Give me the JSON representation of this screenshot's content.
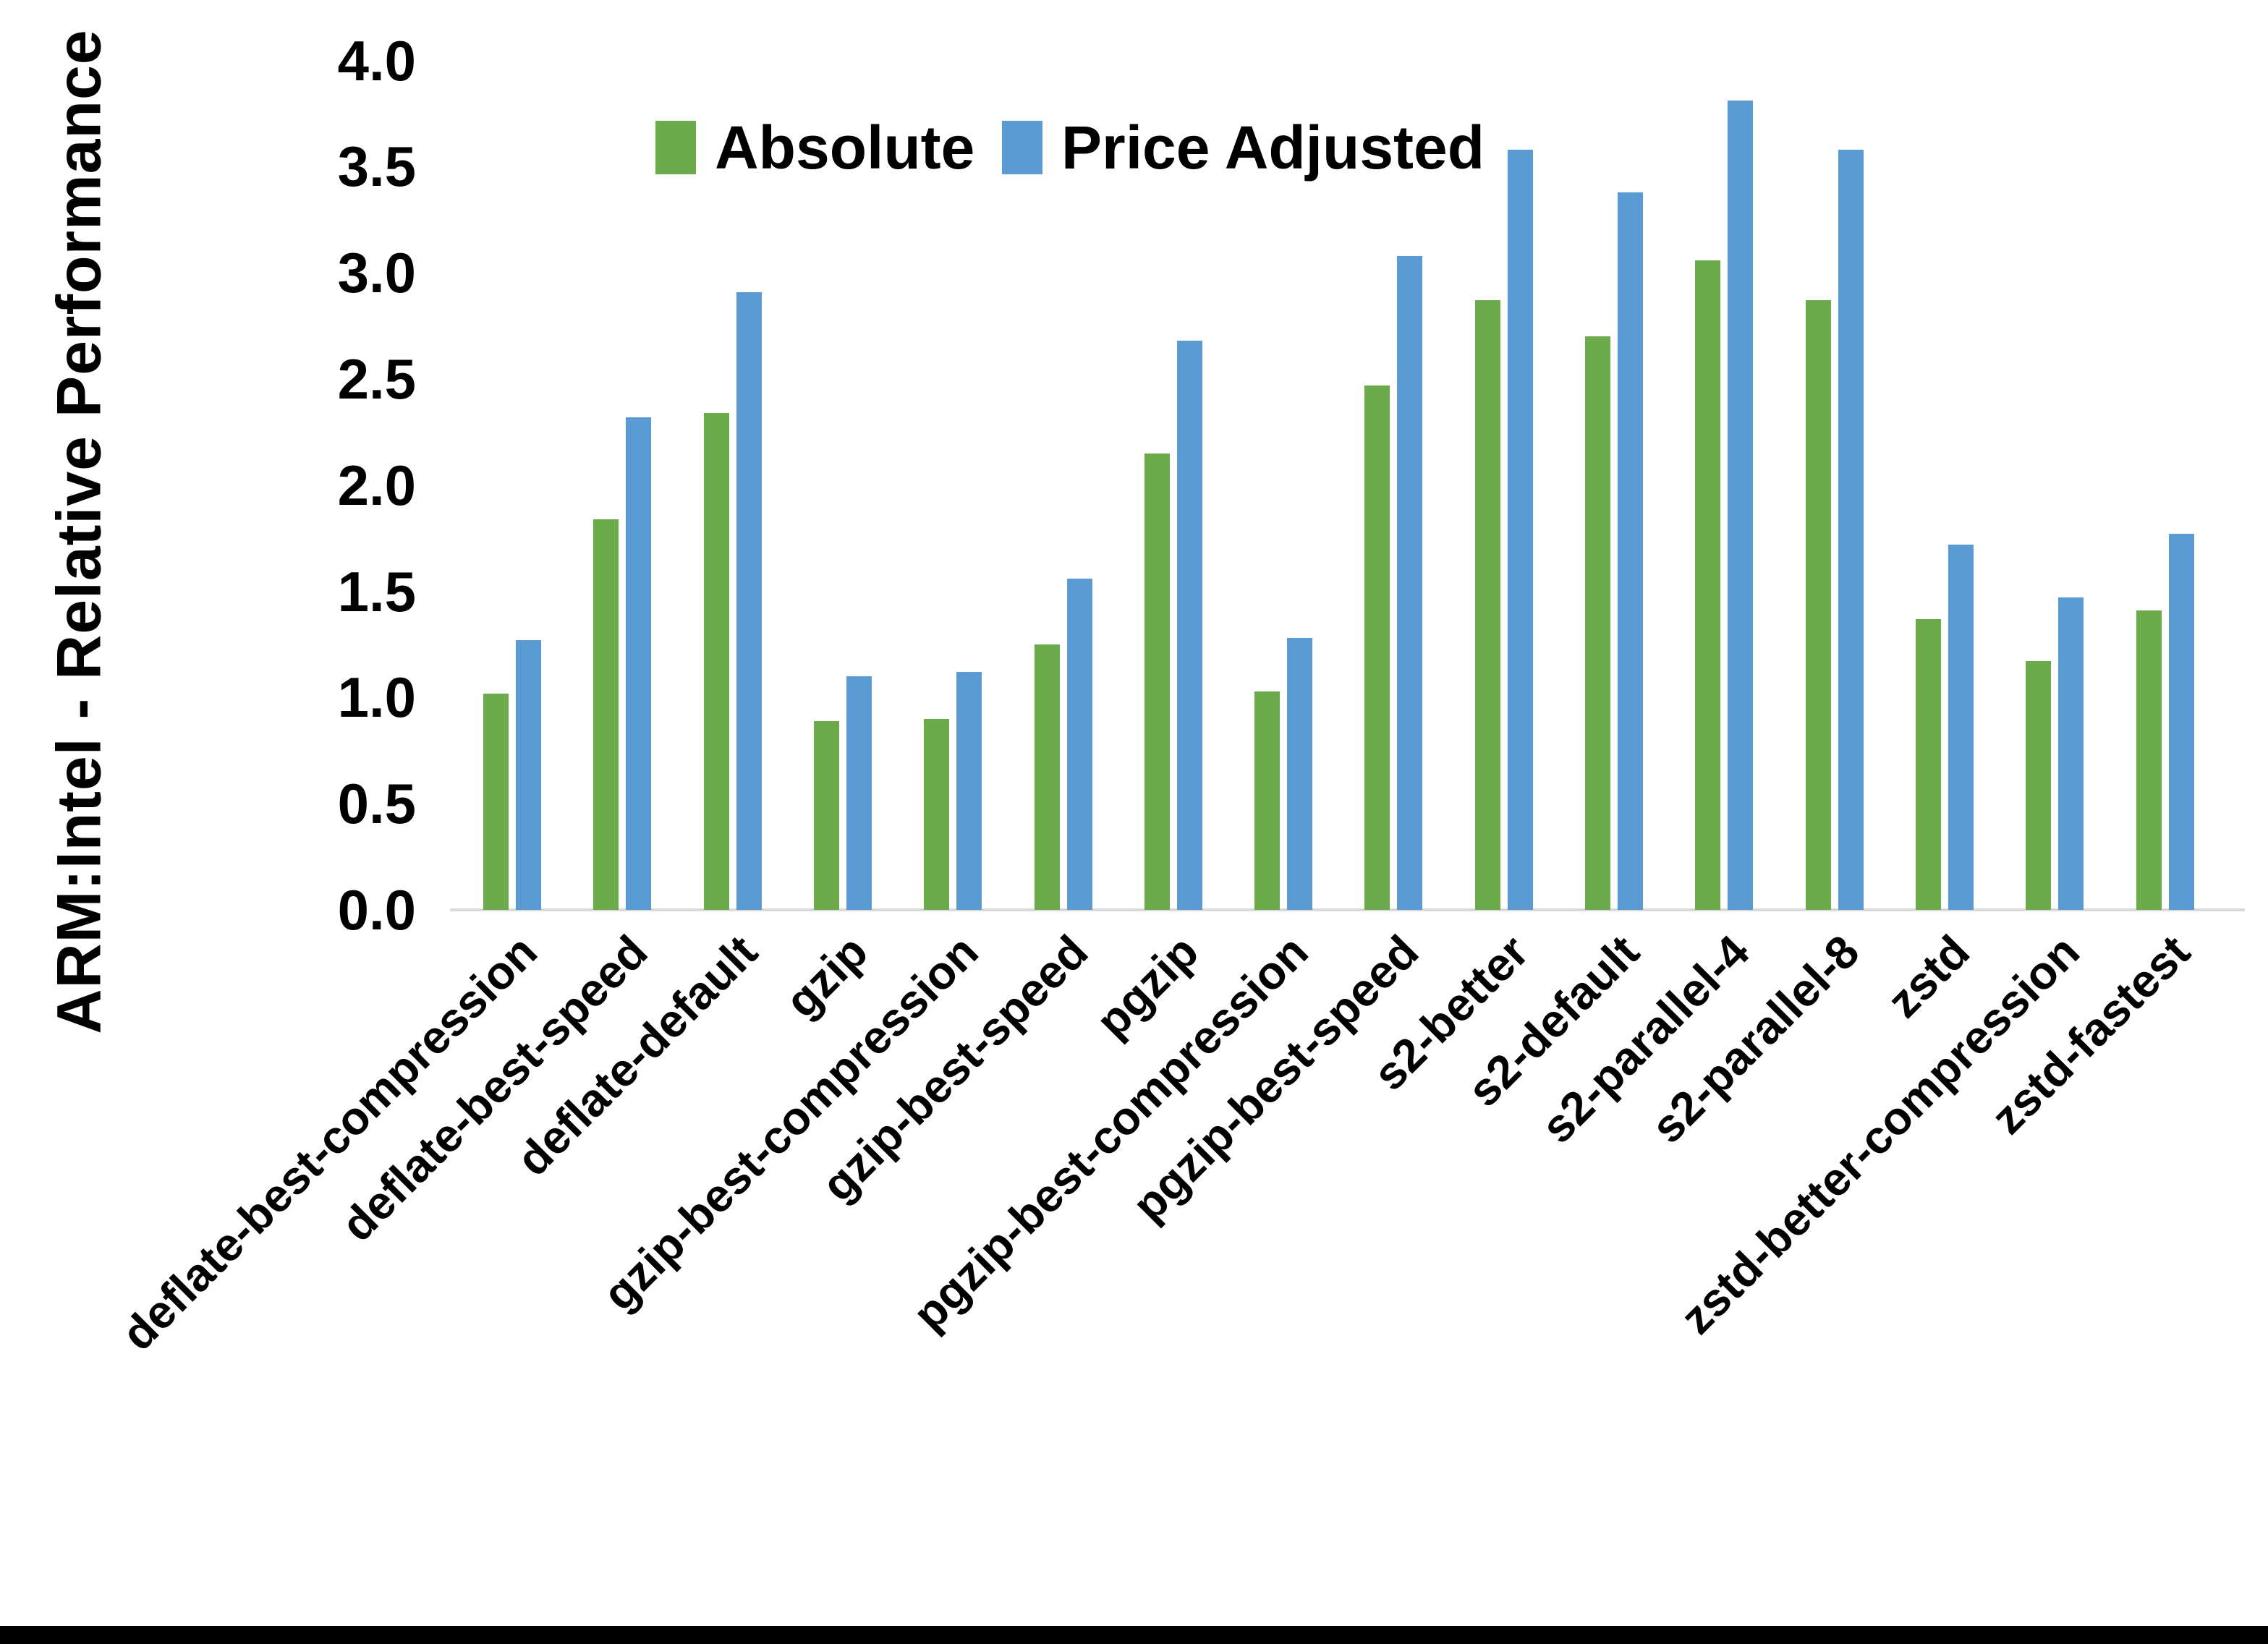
{
  "chart_data": {
    "type": "bar",
    "title": "",
    "xlabel": "",
    "ylabel": "ARM:Intel - Relative Performance",
    "ylim": [
      0.0,
      4.0
    ],
    "ytick_step": 0.5,
    "yticks": [
      "4.0",
      "3.5",
      "3.0",
      "2.5",
      "2.0",
      "1.5",
      "1.0",
      "0.5",
      "0.0"
    ],
    "grid": false,
    "legend_position": "top-center",
    "categories": [
      "deflate-best-compression",
      "deflate-best-speed",
      "deflate-default",
      "gzip",
      "gzip-best-compression",
      "gzip-best-speed",
      "pgzip",
      "pgzip-best-compression",
      "pgzip-best-speed",
      "s2-better",
      "s2-default",
      "s2-parallel-4",
      "s2-parallel-8",
      "zstd",
      "zstd-better-compression",
      "zstd-fastest"
    ],
    "series": [
      {
        "name": "Absolute",
        "color": "#6CAB4A",
        "values": [
          1.02,
          1.84,
          2.34,
          0.89,
          0.9,
          1.25,
          2.15,
          1.03,
          2.47,
          2.87,
          2.7,
          3.06,
          2.87,
          1.37,
          1.17,
          1.41
        ]
      },
      {
        "name": "Price Adjusted",
        "color": "#5B9BD5",
        "values": [
          1.27,
          2.32,
          2.91,
          1.1,
          1.12,
          1.56,
          2.68,
          1.28,
          3.08,
          3.58,
          3.38,
          3.81,
          3.58,
          1.72,
          1.47,
          1.77
        ]
      }
    ]
  },
  "legend": {
    "items": [
      {
        "label": "Absolute",
        "color": "#6CAB4A"
      },
      {
        "label": "Price Adjusted",
        "color": "#5B9BD5"
      }
    ]
  },
  "colors": {
    "background": "#FFFFFF",
    "text": "#000000",
    "axis_line": "#D9D9D9",
    "bottom_border": "#000000"
  }
}
